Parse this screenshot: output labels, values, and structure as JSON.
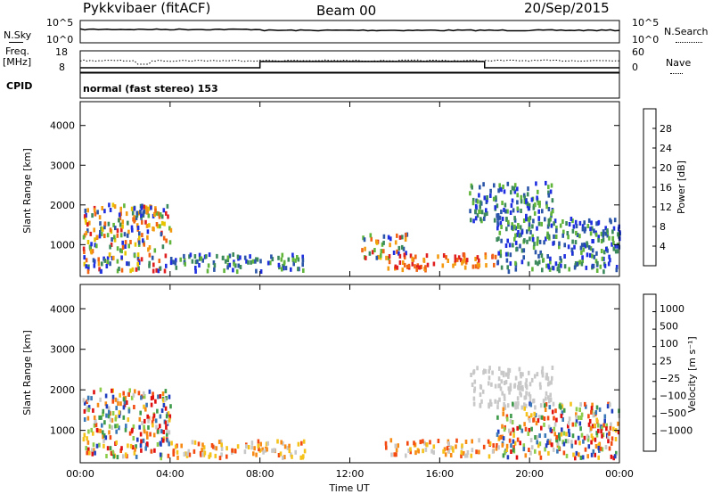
{
  "header": {
    "radar": "Pykkvibaer (fitACF)",
    "beam": "Beam 00",
    "date": "20/Sep/2015"
  },
  "sky_panel": {
    "left_label": "N.Sky",
    "right_label": "N.Search",
    "left_ticks": [
      "10^5",
      "10^0"
    ],
    "right_ticks": [
      "10^5",
      "10^0"
    ]
  },
  "freq_panel": {
    "left_label_1": "Freq.",
    "left_label_2": "[MHz]",
    "left_ticks": [
      "18",
      "8"
    ],
    "right_ticks": [
      "60",
      "0"
    ],
    "right_label": "Nave"
  },
  "cpid": {
    "label": "CPID",
    "text": "normal (fast stereo) 153"
  },
  "colors": {
    "power_scale": [
      "#1f2fe0",
      "#2b55a8",
      "#3c8a5c",
      "#60b53a",
      "#e6c400",
      "#f39a10",
      "#f06414",
      "#e02020"
    ],
    "velocity_scale": [
      "#e01010",
      "#f24a10",
      "#f78a14",
      "#f5c21a",
      "#c8c8c8",
      "#8ccc4a",
      "#3c9a4a",
      "#3a78b8",
      "#2040c0"
    ],
    "frame": "#000000"
  },
  "chart_data": [
    {
      "type": "heatmap",
      "title": "",
      "ylabel": "Slant Range [km]",
      "ylim": [
        200,
        4600
      ],
      "xlim": [
        "00:00",
        "24:00"
      ],
      "y_ticks": [
        "1000",
        "2000",
        "3000",
        "4000"
      ],
      "colorbar": {
        "label": "Power [dB]",
        "ticks": [
          "4",
          "8",
          "12",
          "16",
          "20",
          "24",
          "28"
        ],
        "range": [
          0,
          32
        ]
      },
      "regions": [
        {
          "t0": 0.1,
          "t1": 4.0,
          "r0": 260,
          "r1": 1950,
          "level": "mixed"
        },
        {
          "t0": 4.0,
          "t1": 10.0,
          "r0": 260,
          "r1": 700,
          "level": "low"
        },
        {
          "t0": 12.5,
          "t1": 14.5,
          "r0": 600,
          "r1": 1200,
          "level": "mixed"
        },
        {
          "t0": 13.5,
          "t1": 18.5,
          "r0": 300,
          "r1": 700,
          "level": "high"
        },
        {
          "t0": 18.5,
          "t1": 24.0,
          "r0": 260,
          "r1": 1600,
          "level": "low"
        },
        {
          "t0": 17.3,
          "t1": 21.0,
          "r0": 1500,
          "r1": 2500,
          "level": "low"
        }
      ]
    },
    {
      "type": "heatmap",
      "title": "",
      "ylabel": "Slant Range [km]",
      "xlabel": "Time UT",
      "ylim": [
        200,
        4600
      ],
      "xlim": [
        "00:00",
        "24:00"
      ],
      "x_ticks": [
        "00:00",
        "04:00",
        "08:00",
        "12:00",
        "16:00",
        "20:00",
        "00:00"
      ],
      "y_ticks": [
        "1000",
        "2000",
        "3000",
        "4000"
      ],
      "colorbar": {
        "label": "Velocity [m s⁻¹]",
        "ticks": [
          "1000",
          "500",
          "100",
          "25",
          "−25",
          "−100",
          "−500",
          "−1000"
        ]
      },
      "regions": [
        {
          "t0": 0.1,
          "t1": 4.0,
          "r0": 260,
          "r1": 1950,
          "level": "mixed"
        },
        {
          "t0": 4.0,
          "t1": 10.0,
          "r0": 260,
          "r1": 700,
          "level": "negative"
        },
        {
          "t0": 13.5,
          "t1": 18.5,
          "r0": 300,
          "r1": 700,
          "level": "negative"
        },
        {
          "t0": 17.3,
          "t1": 21.0,
          "r0": 1500,
          "r1": 2500,
          "level": "ground"
        },
        {
          "t0": 18.5,
          "t1": 24.0,
          "r0": 260,
          "r1": 1600,
          "level": "mixed"
        }
      ]
    }
  ]
}
